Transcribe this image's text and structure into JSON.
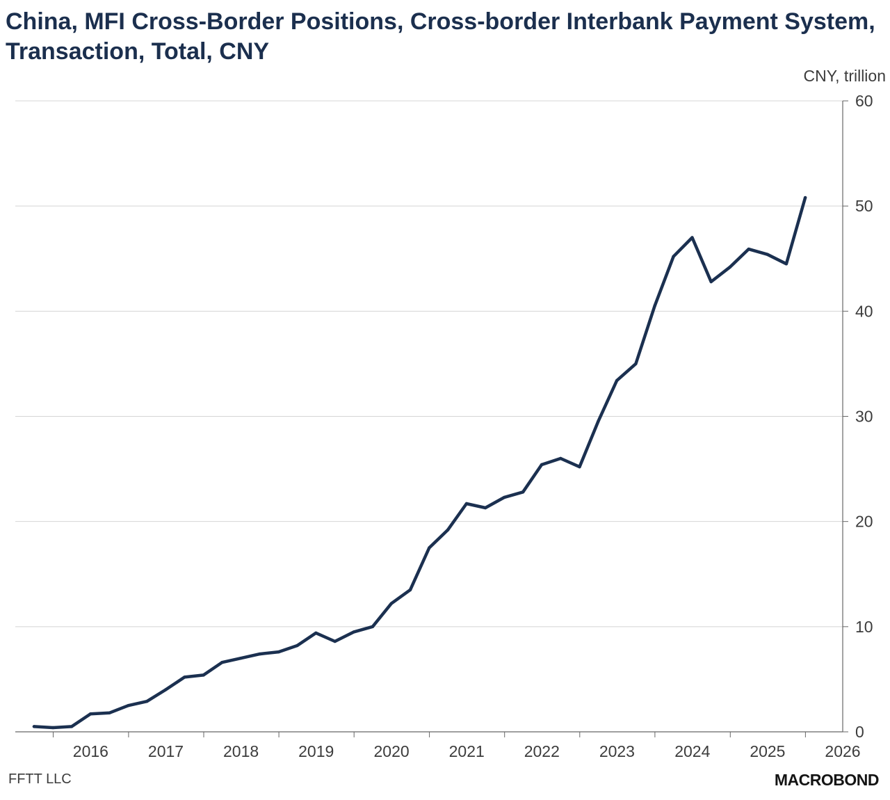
{
  "title": "China, MFI Cross-Border Positions, Cross-border Interbank Payment System, Transaction, Total, CNY",
  "unit_label": "CNY, trillion",
  "source": "FFTT LLC",
  "brand": "MACROBOND",
  "colors": {
    "line": "#1b3050",
    "grid": "#d4d4d4",
    "axis": "#666666",
    "text": "#3c3c3c"
  },
  "chart_data": {
    "type": "line",
    "title": "China, MFI Cross-Border Positions, Cross-border Interbank Payment System, Transaction, Total, CNY",
    "ylabel": "CNY, trillion",
    "ylim": [
      0,
      60
    ],
    "yticks": [
      0,
      10,
      20,
      30,
      40,
      50,
      60
    ],
    "xlim": [
      "2015-07-01",
      "2026-07-01"
    ],
    "xticks": [
      "2016",
      "2017",
      "2018",
      "2019",
      "2020",
      "2021",
      "2022",
      "2023",
      "2024",
      "2025",
      "2026"
    ],
    "grid": true,
    "y_axis_position": "right",
    "series": [
      {
        "x": [
          "2015-09-30",
          "2015-12-31",
          "2016-03-31",
          "2016-06-30",
          "2016-09-30",
          "2016-12-31",
          "2017-03-31",
          "2017-06-30",
          "2017-09-30",
          "2017-12-31",
          "2018-03-31",
          "2018-06-30",
          "2018-09-30",
          "2018-12-31",
          "2019-03-31",
          "2019-06-30",
          "2019-09-30",
          "2019-12-31",
          "2020-03-31",
          "2020-06-30",
          "2020-09-30",
          "2020-12-31",
          "2021-03-31",
          "2021-06-30",
          "2021-09-30",
          "2021-12-31",
          "2022-03-31",
          "2022-06-30",
          "2022-09-30",
          "2022-12-31",
          "2023-03-31",
          "2023-06-30",
          "2023-09-30",
          "2023-12-31",
          "2024-03-31",
          "2024-06-30",
          "2024-09-30",
          "2024-12-31",
          "2025-03-31",
          "2025-06-30",
          "2025-09-30",
          "2025-12-31"
        ],
        "values": [
          0.5,
          0.4,
          0.5,
          1.7,
          1.8,
          2.5,
          2.9,
          4.0,
          5.2,
          5.4,
          6.6,
          7.0,
          7.4,
          7.6,
          8.2,
          9.4,
          8.6,
          9.5,
          10.0,
          12.2,
          13.5,
          17.5,
          19.2,
          21.7,
          21.3,
          22.3,
          22.8,
          25.4,
          26.0,
          25.2,
          29.5,
          33.4,
          35.0,
          40.5,
          45.2,
          47.0,
          42.8,
          44.2,
          45.9,
          45.4,
          44.5,
          50.8
        ]
      }
    ]
  }
}
